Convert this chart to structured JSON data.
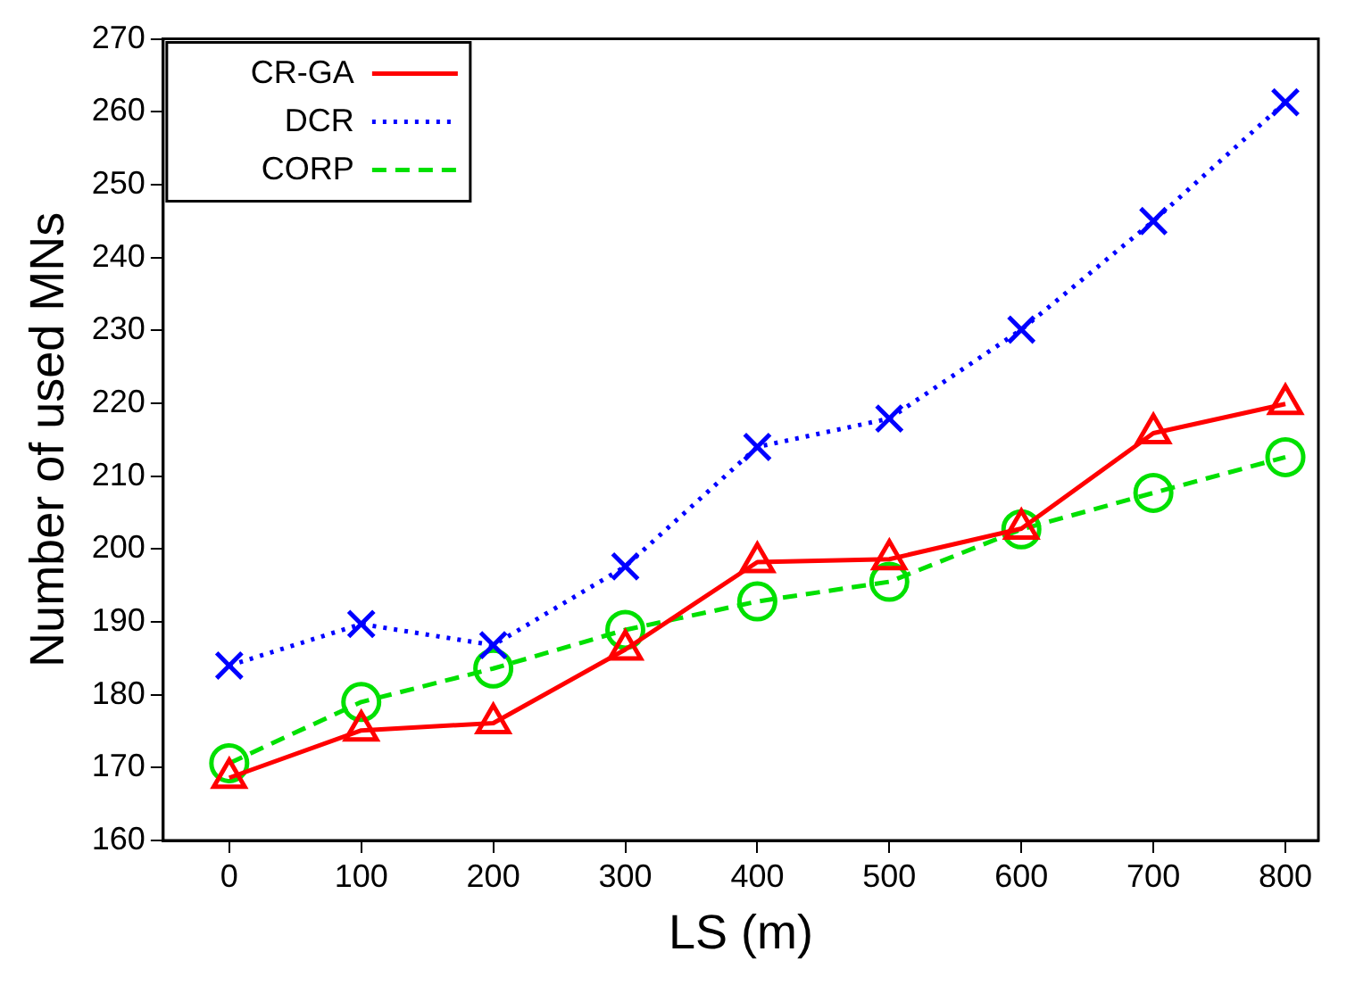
{
  "chart_data": {
    "type": "line",
    "xlabel": "LS (m)",
    "ylabel": "Number of used MNs",
    "x": [
      0,
      100,
      200,
      300,
      400,
      500,
      600,
      700,
      800
    ],
    "xlim": [
      -50,
      825
    ],
    "xticks": [
      0,
      100,
      200,
      300,
      400,
      500,
      600,
      700,
      800
    ],
    "ylim": [
      160,
      270
    ],
    "yticks": [
      160,
      170,
      180,
      190,
      200,
      210,
      220,
      230,
      240,
      250,
      260,
      270
    ],
    "grid": false,
    "legend": "top left",
    "series": [
      {
        "name": "CR-GA",
        "color": "#ff0000",
        "marker": "triangle",
        "line_style": "solid",
        "values": [
          168.6,
          175.1,
          176.1,
          186.2,
          198.2,
          198.6,
          202.8,
          215.9,
          219.9
        ]
      },
      {
        "name": "DCR",
        "color": "#0000ff",
        "marker": "cross",
        "line_style": "dotted",
        "values": [
          184.0,
          189.7,
          186.8,
          197.6,
          214.0,
          217.9,
          230.1,
          245.0,
          261.3
        ]
      },
      {
        "name": "CORP",
        "color": "#00e000",
        "marker": "circle",
        "line_style": "dashed",
        "values": [
          170.6,
          179.0,
          183.6,
          188.9,
          192.8,
          195.5,
          202.7,
          207.7,
          212.6
        ]
      }
    ]
  }
}
